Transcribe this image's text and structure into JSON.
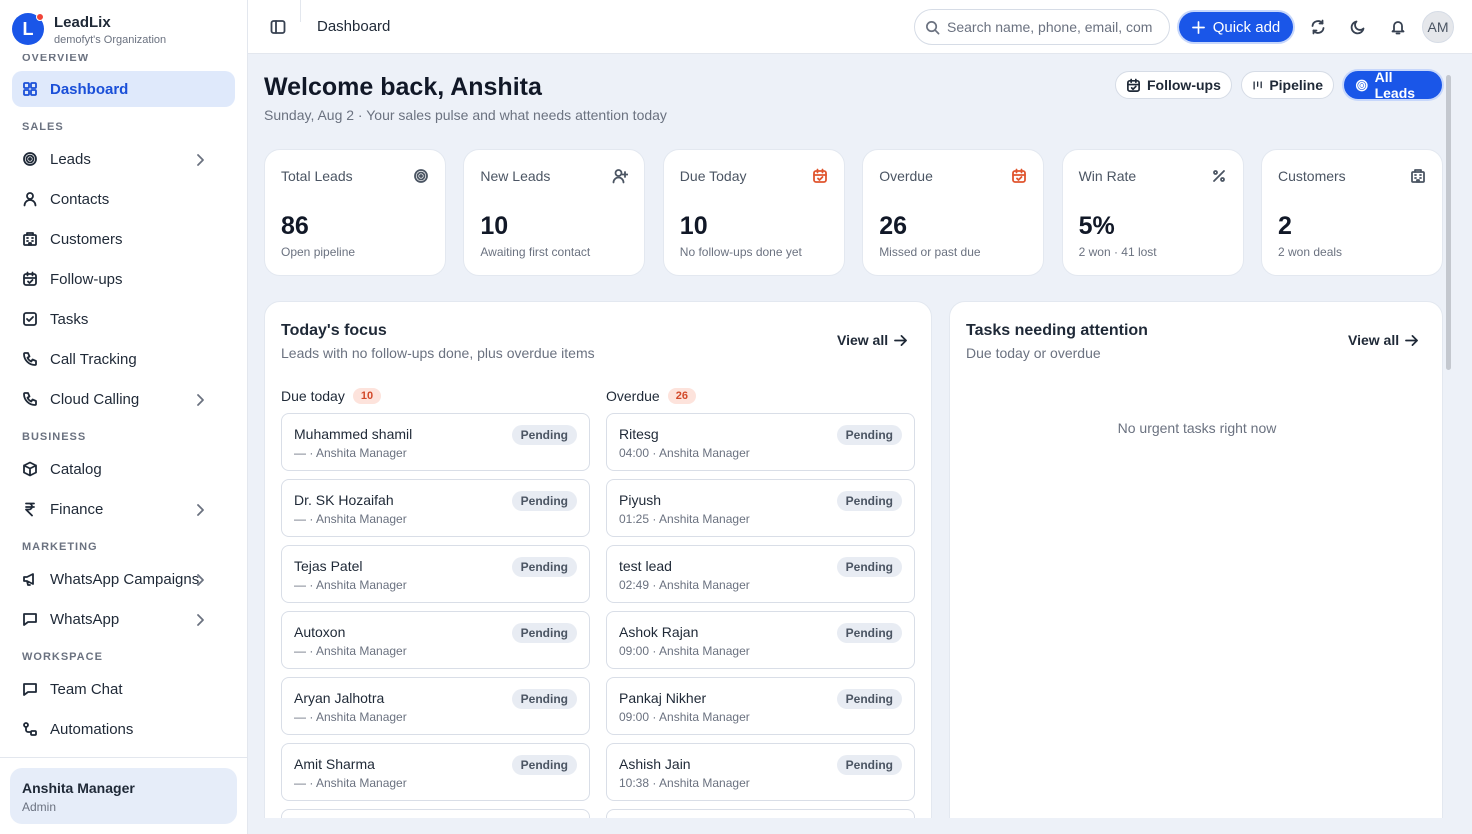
{
  "app": {
    "logo": "L",
    "name": "LeadLix",
    "org": "demofyt's Organization"
  },
  "sidebar": {
    "sections": [
      {
        "title": "OVERVIEW",
        "items": [
          {
            "label": "Dashboard",
            "icon": "grid",
            "active": true
          }
        ]
      },
      {
        "title": "SALES",
        "items": [
          {
            "label": "Leads",
            "icon": "target",
            "chevron": true
          },
          {
            "label": "Contacts",
            "icon": "user"
          },
          {
            "label": "Customers",
            "icon": "building"
          },
          {
            "label": "Follow-ups",
            "icon": "calendar"
          },
          {
            "label": "Tasks",
            "icon": "check"
          },
          {
            "label": "Call Tracking",
            "icon": "phone"
          },
          {
            "label": "Cloud Calling",
            "icon": "phone",
            "chevron": true
          }
        ]
      },
      {
        "title": "BUSINESS",
        "items": [
          {
            "label": "Catalog",
            "icon": "box"
          },
          {
            "label": "Finance",
            "icon": "rupee",
            "chevron": true
          }
        ]
      },
      {
        "title": "MARKETING",
        "items": [
          {
            "label": "WhatsApp Campaigns",
            "icon": "megaphone",
            "chevron": true
          },
          {
            "label": "WhatsApp",
            "icon": "chat",
            "chevron": true
          }
        ]
      },
      {
        "title": "WORKSPACE",
        "items": [
          {
            "label": "Team Chat",
            "icon": "chat"
          },
          {
            "label": "Automations",
            "icon": "flow"
          }
        ]
      }
    ],
    "user": {
      "name": "Anshita Manager",
      "role": "Admin"
    }
  },
  "topbar": {
    "breadcrumb": "Dashboard",
    "search": "Search name, phone, email, com",
    "quick_add": "Quick add",
    "avatar": "AM"
  },
  "header": {
    "title": "Welcome back, Anshita",
    "subtitle": "Sunday, Aug 2 · Your sales pulse and what needs attention today",
    "buttons": [
      {
        "label": "Follow-ups",
        "icon": "calendar"
      },
      {
        "label": "Pipeline",
        "icon": "bars"
      },
      {
        "label": "All Leads",
        "icon": "target",
        "primary": true
      }
    ]
  },
  "stats": [
    {
      "label": "Total Leads",
      "value": "86",
      "caption": "Open pipeline",
      "icon": "target"
    },
    {
      "label": "New Leads",
      "value": "10",
      "caption": "Awaiting first contact",
      "icon": "useradd"
    },
    {
      "label": "Due Today",
      "value": "10",
      "caption": "No follow-ups done yet",
      "icon": "calendar",
      "alert": true
    },
    {
      "label": "Overdue",
      "value": "26",
      "caption": "Missed or past due",
      "icon": "calendar",
      "alert": true
    },
    {
      "label": "Win Rate",
      "value": "5%",
      "caption": "2 won · 41 lost",
      "icon": "percent"
    },
    {
      "label": "Customers",
      "value": "2",
      "caption": "2 won deals",
      "icon": "building"
    }
  ],
  "focus": {
    "title": "Today's focus",
    "subtitle": "Leads with no follow-ups done, plus overdue items",
    "view_all": "View all",
    "columns": [
      {
        "title": "Due today",
        "count": "10",
        "items": [
          {
            "name": "Muhammed shamil",
            "meta": "— · Anshita Manager",
            "status": "Pending"
          },
          {
            "name": "Dr. SK Hozaifah",
            "meta": "— · Anshita Manager",
            "status": "Pending"
          },
          {
            "name": "Tejas Patel",
            "meta": "— · Anshita Manager",
            "status": "Pending"
          },
          {
            "name": "Autoxon",
            "meta": "— · Anshita Manager",
            "status": "Pending"
          },
          {
            "name": "Aryan Jalhotra",
            "meta": "— · Anshita Manager",
            "status": "Pending"
          },
          {
            "name": "Amit Sharma",
            "meta": "— · Anshita Manager",
            "status": "Pending"
          }
        ]
      },
      {
        "title": "Overdue",
        "count": "26",
        "items": [
          {
            "name": "Ritesg",
            "meta": "04:00 · Anshita Manager",
            "status": "Pending"
          },
          {
            "name": "Piyush",
            "meta": "01:25 · Anshita Manager",
            "status": "Pending"
          },
          {
            "name": "test lead",
            "meta": "02:49 · Anshita Manager",
            "status": "Pending"
          },
          {
            "name": "Ashok Rajan",
            "meta": "09:00 · Anshita Manager",
            "status": "Pending"
          },
          {
            "name": "Pankaj Nikher",
            "meta": "09:00 · Anshita Manager",
            "status": "Pending"
          },
          {
            "name": "Ashish Jain",
            "meta": "10:38 · Anshita Manager",
            "status": "Pending"
          }
        ]
      }
    ]
  },
  "tasks": {
    "title": "Tasks needing attention",
    "subtitle": "Due today or overdue",
    "view_all": "View all",
    "empty": "No urgent tasks right now"
  }
}
